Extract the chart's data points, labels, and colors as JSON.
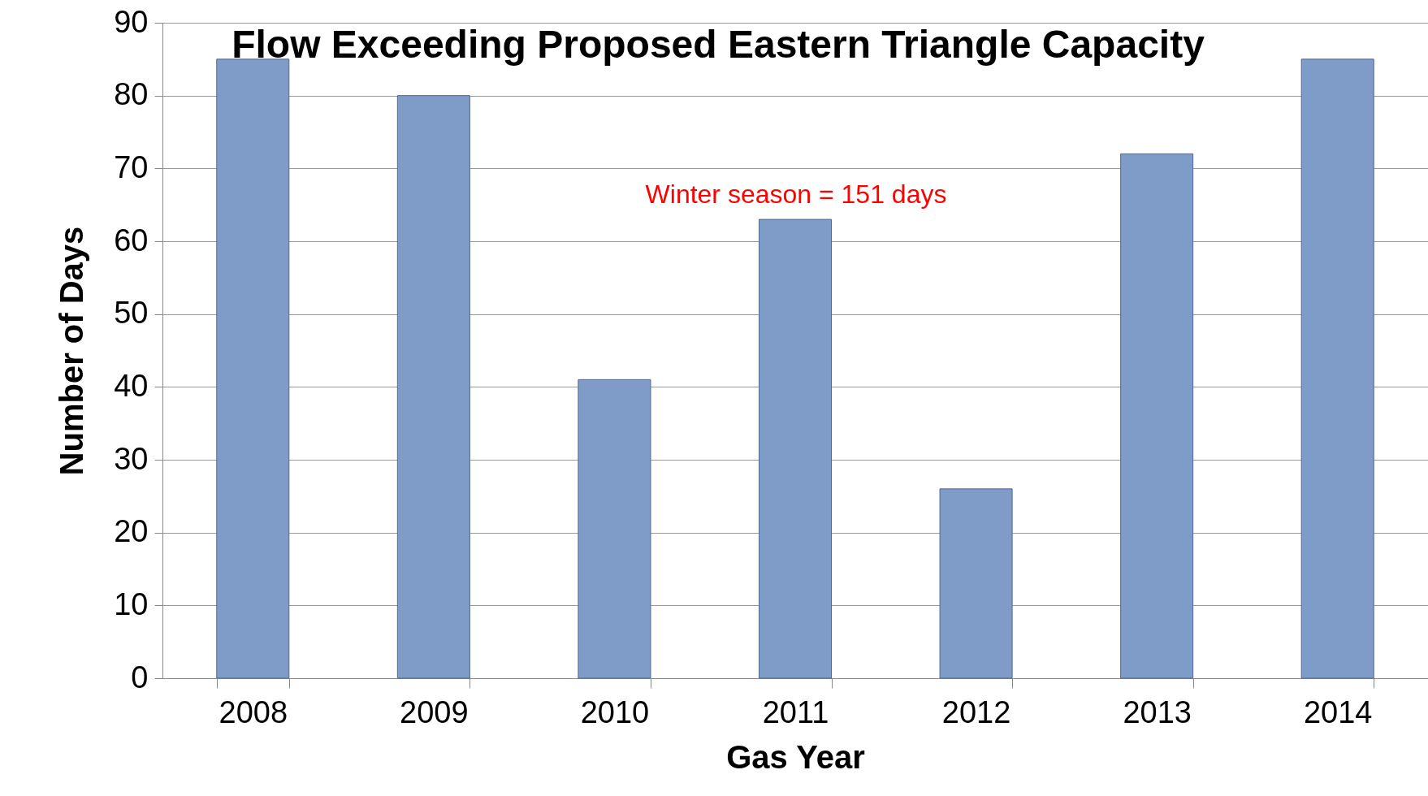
{
  "chart_data": {
    "type": "bar",
    "title": "Flow Exceeding Proposed Eastern Triangle Capacity",
    "xlabel": "Gas Year",
    "ylabel": "Number of Days",
    "categories": [
      "2008",
      "2009",
      "2010",
      "2011",
      "2012",
      "2013",
      "2014"
    ],
    "values": [
      85,
      80,
      41,
      63,
      26,
      72,
      85
    ],
    "color": "#7f9bc8",
    "ylim": [
      0,
      90
    ],
    "yticks": [
      0,
      10,
      20,
      30,
      40,
      50,
      60,
      70,
      80,
      90
    ],
    "grid": "y",
    "annotations": [
      "Winter season = 151 days"
    ]
  }
}
